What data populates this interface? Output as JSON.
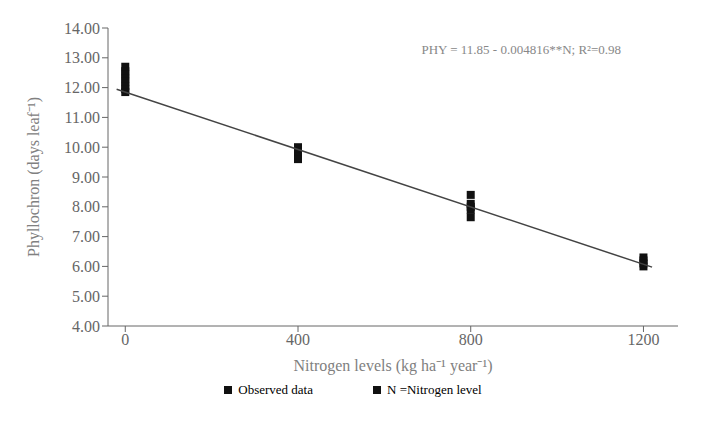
{
  "chart_data": {
    "type": "scatter",
    "xlabel": "Nitrogen levels (kg ha⁻¹ year⁻¹)",
    "ylabel": "Phyllochron (days leaf⁻¹)",
    "series": [
      {
        "name": "Observed data",
        "type": "scatter",
        "marker": "square",
        "color": "#111111",
        "x": [
          0,
          0,
          0,
          0,
          0,
          0,
          0,
          0,
          400,
          400,
          400,
          400,
          800,
          800,
          800,
          800,
          800,
          1200,
          1200,
          1200,
          1200
        ],
        "values": [
          12.7,
          12.55,
          12.45,
          12.3,
          12.2,
          12.05,
          11.95,
          11.85,
          10.0,
          9.85,
          9.7,
          9.6,
          8.4,
          8.1,
          8.0,
          7.9,
          7.65,
          6.3,
          6.2,
          6.1,
          6.0
        ]
      },
      {
        "type": "line",
        "line_style": "solid",
        "color": "#444444",
        "x": [
          -20,
          1220
        ],
        "values": [
          11.94632,
          5.97448
        ]
      },
      {
        "name": "N =Nitrogen level",
        "type": "scatter",
        "marker": "square",
        "color": "#111111",
        "x": [],
        "values": []
      }
    ],
    "annotations": [
      {
        "text": "PHY = 11.85 - 0.004816**N; R²=0.98",
        "color": "#888888"
      }
    ],
    "xlim": [
      -40,
      1280
    ],
    "ylim": [
      4.0,
      14.0
    ],
    "xticks": [
      0,
      400,
      800,
      1200
    ],
    "yticks": [
      {
        "value": 4,
        "label": "4.00"
      },
      {
        "value": 5,
        "label": "5.00"
      },
      {
        "value": 6,
        "label": "6.00"
      },
      {
        "value": 7,
        "label": "7.00"
      },
      {
        "value": 8,
        "label": "8.00"
      },
      {
        "value": 9,
        "label": "9.00"
      },
      {
        "value": 10,
        "label": "10.00"
      },
      {
        "value": 11,
        "label": "11.00"
      },
      {
        "value": 12,
        "label": "12.00"
      },
      {
        "value": 13,
        "label": "13.00"
      },
      {
        "value": 14,
        "label": "14.00"
      }
    ],
    "grid": false,
    "legend": "bottom"
  }
}
